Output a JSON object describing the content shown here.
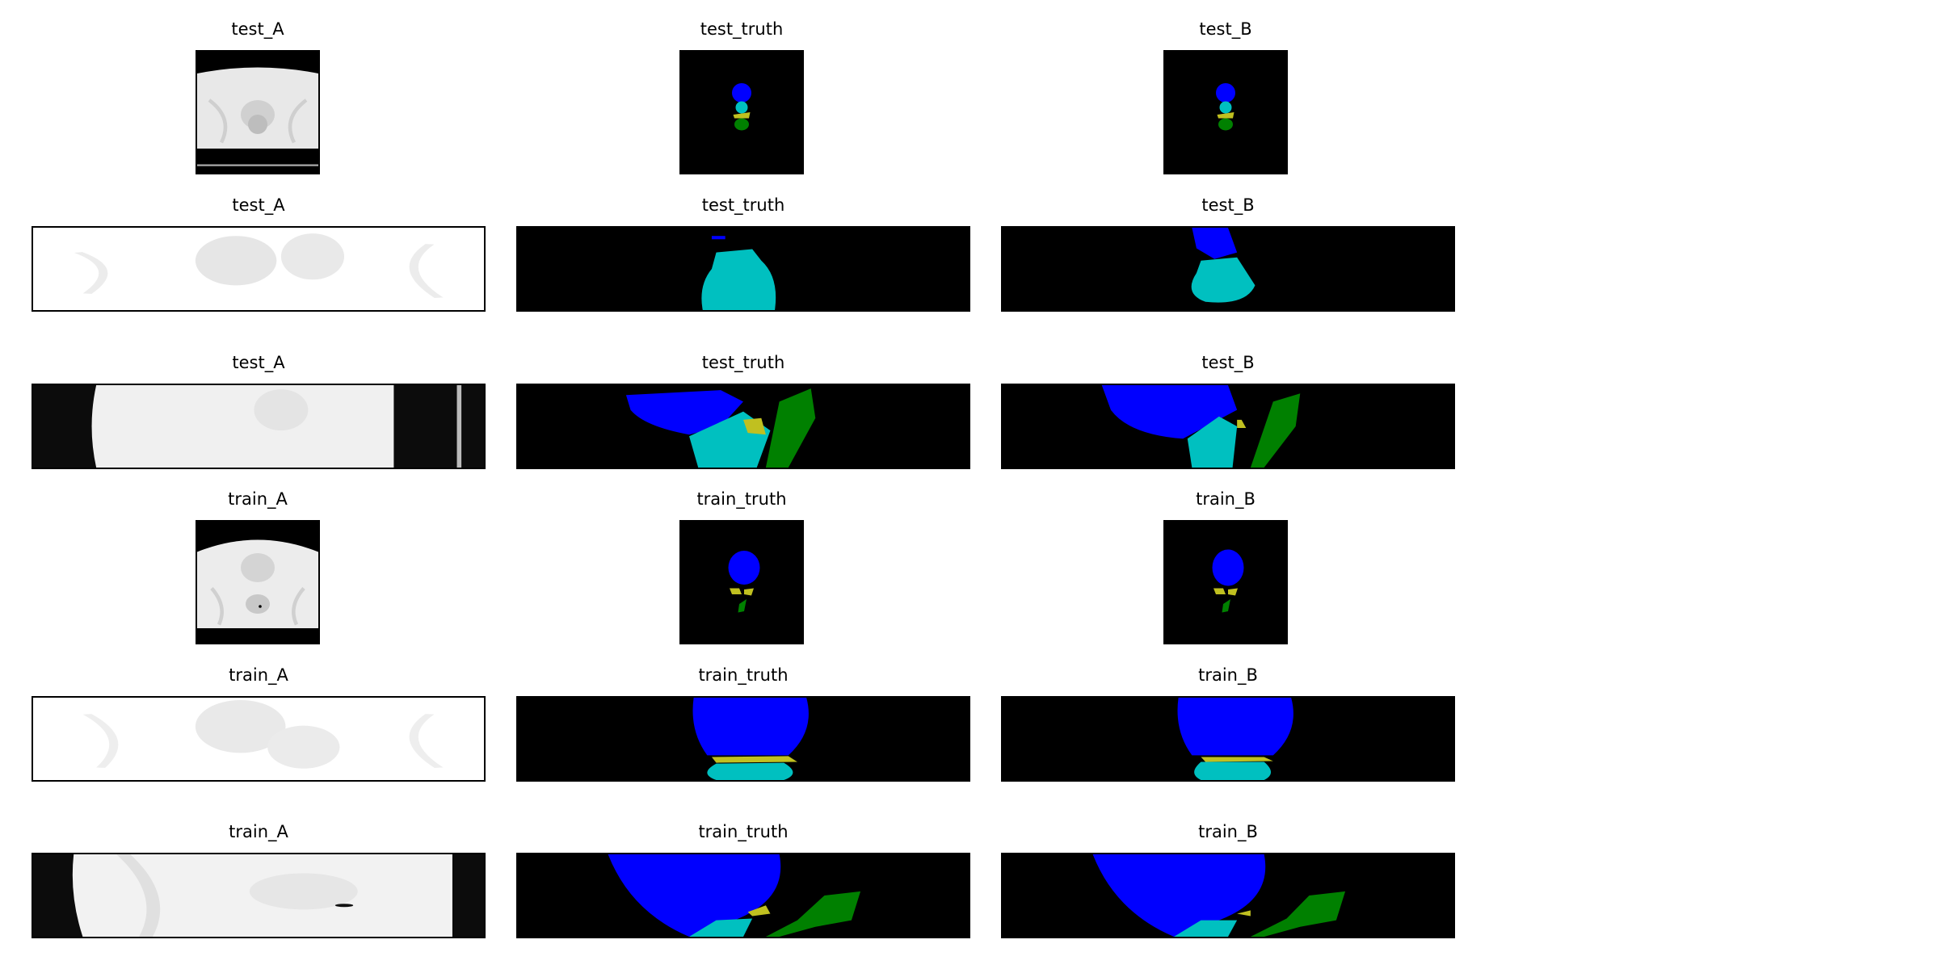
{
  "figure": {
    "rows": [
      {
        "cols": [
          "test_A",
          "test_truth",
          "test_B"
        ]
      },
      {
        "cols": [
          "test_A",
          "test_truth",
          "test_B"
        ]
      },
      {
        "cols": [
          "test_A",
          "test_truth",
          "test_B"
        ]
      },
      {
        "cols": [
          "train_A",
          "train_truth",
          "train_B"
        ]
      },
      {
        "cols": [
          "train_A",
          "train_truth",
          "train_B"
        ]
      },
      {
        "cols": [
          "train_A",
          "train_truth",
          "train_B"
        ]
      }
    ]
  },
  "colors": {
    "label_blue": "#0000ff",
    "label_cyan": "#00c0c0",
    "label_yellow": "#c0c020",
    "label_green": "#008000",
    "background": "#000000"
  }
}
